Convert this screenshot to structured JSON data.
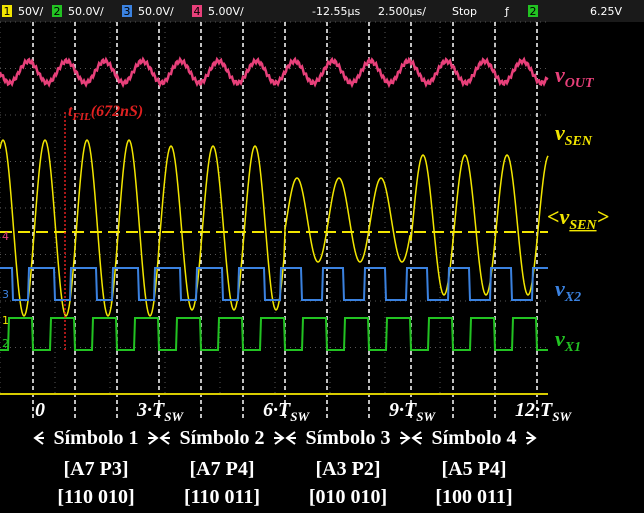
{
  "status_bar": {
    "channels": [
      {
        "number": "1",
        "scale": "50V/",
        "color": "#f2e600"
      },
      {
        "number": "2",
        "scale": "50.0V/",
        "color": "#22c322"
      },
      {
        "number": "3",
        "scale": "50.0V/",
        "color": "#3b82e0"
      },
      {
        "number": "4",
        "scale": "5.00V/",
        "color": "#e8407a"
      }
    ],
    "time_offset": "-12.55µs",
    "time_scale": "2.500µs/",
    "run_state": "Stop",
    "trigger_symbol": "ƒ",
    "trigger_channel": "2",
    "trigger_level": "6.25V"
  },
  "left_markers": [
    {
      "label": "4",
      "color": "#e8407a"
    },
    {
      "label": "3",
      "color": "#3b82e0"
    },
    {
      "label": "1",
      "color": "#f2e600"
    },
    {
      "label": "2",
      "color": "#22c322"
    }
  ],
  "trace_labels": [
    {
      "main": "v",
      "sub": "OUT",
      "color": "#e8407a"
    },
    {
      "main": "v",
      "sub": "SEN",
      "color": "#f2e600"
    },
    {
      "main": "<v",
      "sub": "SEN",
      "end": ">",
      "color": "#f2e600"
    },
    {
      "main": "v",
      "sub": "X2",
      "color": "#3b82e0"
    },
    {
      "main": "v",
      "sub": "X1",
      "color": "#22c322"
    }
  ],
  "annotation": {
    "main": "t",
    "sub": "FIL",
    "text": "(672nS)"
  },
  "time_marks": [
    {
      "main": "0"
    },
    {
      "main": "3·T",
      "sub": "SW"
    },
    {
      "main": "6·T",
      "sub": "SW"
    },
    {
      "main": "9·T",
      "sub": "SW"
    },
    {
      "main": "12·T",
      "sub": "SW"
    }
  ],
  "symbols": [
    {
      "name": "Símbolo 1",
      "code": "[A7 P3]",
      "bits": "[110 010]"
    },
    {
      "name": "Símbolo 2",
      "code": "[A7 P4]",
      "bits": "[110 011]"
    },
    {
      "name": "Símbolo 3",
      "code": "[A3 P2]",
      "bits": "[010 010]"
    },
    {
      "name": "Símbolo 4",
      "code": "[A5 P4]",
      "bits": "[100 011]"
    }
  ]
}
